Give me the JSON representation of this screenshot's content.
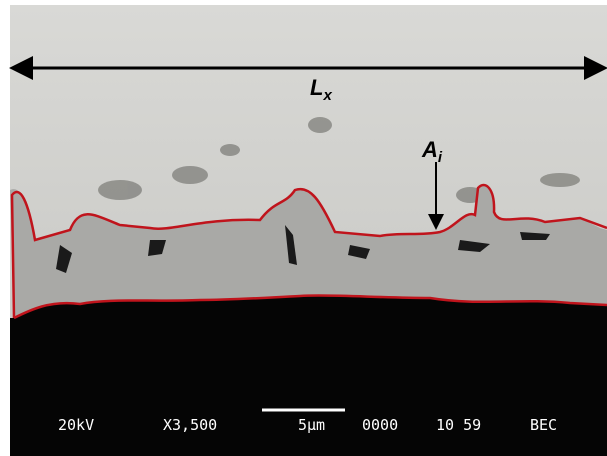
{
  "annotations": {
    "length_label": {
      "main": "L",
      "sub": "x"
    },
    "area_label": {
      "main": "A",
      "sub": "i"
    }
  },
  "info_bar": [
    "20kV",
    "X3,500",
    "5μm",
    "0000",
    "10 59",
    "BEC"
  ]
}
